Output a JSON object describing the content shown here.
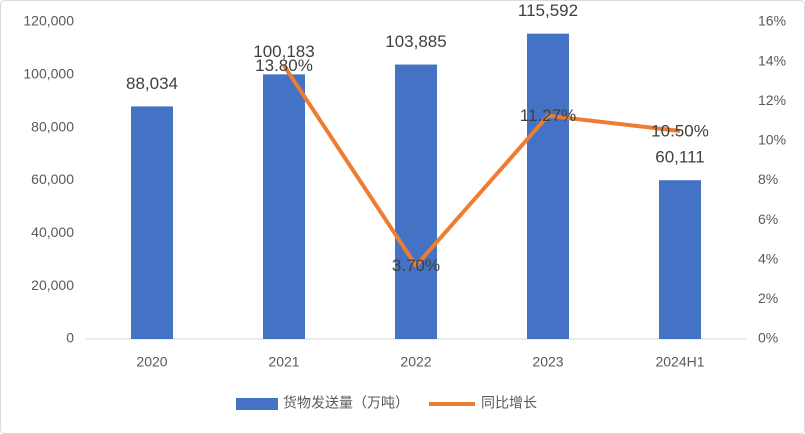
{
  "chart_data": {
    "type": "combo",
    "categories": [
      "2020",
      "2021",
      "2022",
      "2023",
      "2024H1"
    ],
    "series": [
      {
        "name": "货物发送量（万吨）",
        "type": "bar",
        "color": "#4472c4",
        "values": [
          88034,
          100183,
          103885,
          115592,
          60111
        ],
        "value_labels": [
          "88,034",
          "100,183",
          "103,885",
          "115,592",
          "60,111"
        ]
      },
      {
        "name": "同比增长",
        "type": "line",
        "axis": "y2",
        "color": "#ed7d31",
        "values": [
          null,
          13.8,
          3.7,
          11.27,
          10.5
        ],
        "value_labels": [
          null,
          "13.80%",
          "3.70%",
          "11.27%",
          "10.50%"
        ]
      }
    ],
    "ylim": [
      0,
      120000
    ],
    "yticks": [
      0,
      {
        "value": 20000,
        "label": "20,000"
      },
      {
        "value": 40000,
        "label": "40,000"
      },
      {
        "value": 60000,
        "label": "60,000"
      },
      {
        "value": 80000,
        "label": "80,000"
      },
      {
        "value": 100000,
        "label": "100,000"
      },
      {
        "value": 120000,
        "label": "120,000"
      }
    ],
    "y2lim": [
      0,
      16
    ],
    "y2ticks": [
      {
        "value": 0,
        "label": "0%"
      },
      {
        "value": 2,
        "label": "2%"
      },
      {
        "value": 4,
        "label": "4%"
      },
      {
        "value": 6,
        "label": "6%"
      },
      {
        "value": 8,
        "label": "8%"
      },
      {
        "value": 10,
        "label": "10%"
      },
      {
        "value": 12,
        "label": "12%"
      },
      {
        "value": 14,
        "label": "14%"
      },
      {
        "value": 16,
        "label": "16%"
      }
    ],
    "legend": "bottom"
  }
}
